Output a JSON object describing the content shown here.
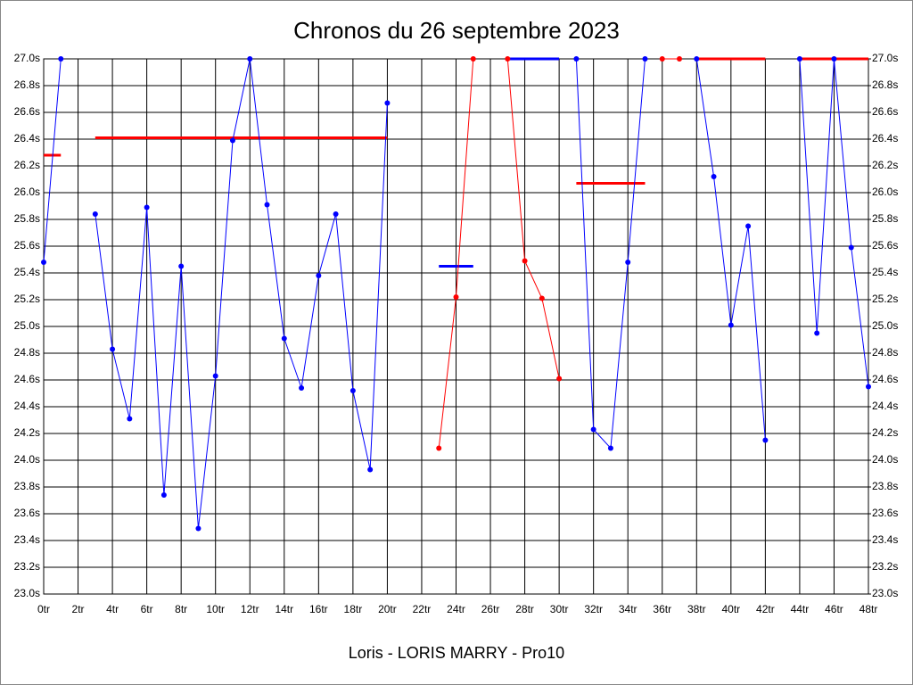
{
  "chart_data": {
    "type": "line",
    "title": "Chronos du 26 septembre 2023",
    "x_label": "Loris - LORIS MARRY - Pro10",
    "x": [
      0,
      1,
      2,
      3,
      4,
      5,
      6,
      7,
      8,
      9,
      10,
      11,
      12,
      13,
      14,
      15,
      16,
      17,
      18,
      19,
      20,
      21,
      22,
      23,
      24,
      25,
      26,
      27,
      28,
      29,
      30,
      31,
      32,
      33,
      34,
      35,
      36,
      37,
      38,
      39,
      40,
      41,
      42,
      43,
      44,
      45,
      46,
      47,
      48
    ],
    "series": [
      {
        "color": "#0000ff",
        "values": [
          25.48,
          27.0,
          null,
          25.84,
          24.83,
          24.31,
          25.89,
          23.74,
          25.45,
          23.49,
          24.63,
          26.39,
          27.0,
          25.91,
          24.91,
          24.54,
          25.38,
          25.84,
          24.52,
          23.93,
          26.67,
          null,
          null,
          null,
          null,
          null,
          null,
          null,
          null,
          null,
          null,
          27.0,
          24.23,
          24.09,
          25.48,
          27.0,
          null,
          null,
          27.0,
          26.12,
          25.01,
          25.75,
          24.15,
          null,
          27.0,
          24.95,
          27.0,
          25.59,
          24.55
        ]
      },
      {
        "color": "#ff0000",
        "values": [
          null,
          null,
          null,
          null,
          null,
          null,
          null,
          null,
          null,
          null,
          null,
          null,
          null,
          null,
          null,
          null,
          null,
          null,
          null,
          null,
          null,
          null,
          null,
          24.09,
          25.22,
          27.0,
          null,
          27.0,
          25.49,
          25.21,
          24.61,
          null,
          null,
          null,
          null,
          null,
          27.0,
          27.0,
          null,
          null,
          null,
          null,
          null,
          null,
          null,
          null,
          null,
          null,
          null
        ]
      }
    ],
    "stint_averages": [
      {
        "start": 0,
        "end": 1,
        "value": 26.28,
        "color": "#ff0000"
      },
      {
        "start": 3,
        "end": 20,
        "value": 26.41,
        "color": "#ff0000"
      },
      {
        "start": 23,
        "end": 25,
        "value": 25.45,
        "color": "#0000ff"
      },
      {
        "start": 27,
        "end": 30,
        "value": 27.0,
        "color": "#0000ff"
      },
      {
        "start": 31,
        "end": 35,
        "value": 26.07,
        "color": "#ff0000"
      },
      {
        "start": 38,
        "end": 42,
        "value": 27.0,
        "color": "#ff0000"
      },
      {
        "start": 44,
        "end": 48,
        "value": 27.0,
        "color": "#ff0000"
      }
    ],
    "xlim": [
      0,
      48
    ],
    "xticks": [
      {
        "value": 0,
        "label": "0tr"
      },
      {
        "value": 2,
        "label": "2tr"
      },
      {
        "value": 4,
        "label": "4tr"
      },
      {
        "value": 6,
        "label": "6tr"
      },
      {
        "value": 8,
        "label": "8tr"
      },
      {
        "value": 10,
        "label": "10tr"
      },
      {
        "value": 12,
        "label": "12tr"
      },
      {
        "value": 14,
        "label": "14tr"
      },
      {
        "value": 16,
        "label": "16tr"
      },
      {
        "value": 18,
        "label": "18tr"
      },
      {
        "value": 20,
        "label": "20tr"
      },
      {
        "value": 22,
        "label": "22tr"
      },
      {
        "value": 24,
        "label": "24tr"
      },
      {
        "value": 26,
        "label": "26tr"
      },
      {
        "value": 28,
        "label": "28tr"
      },
      {
        "value": 30,
        "label": "30tr"
      },
      {
        "value": 32,
        "label": "32tr"
      },
      {
        "value": 34,
        "label": "34tr"
      },
      {
        "value": 36,
        "label": "36tr"
      },
      {
        "value": 38,
        "label": "38tr"
      },
      {
        "value": 40,
        "label": "40tr"
      },
      {
        "value": 42,
        "label": "42tr"
      },
      {
        "value": 44,
        "label": "44tr"
      },
      {
        "value": 46,
        "label": "46tr"
      },
      {
        "value": 48,
        "label": "48tr"
      }
    ],
    "ylim": [
      23.0,
      27.0
    ],
    "yticks": [
      {
        "value": 23.0,
        "label": "23.0s"
      },
      {
        "value": 23.2,
        "label": "23.2s"
      },
      {
        "value": 23.4,
        "label": "23.4s"
      },
      {
        "value": 23.6,
        "label": "23.6s"
      },
      {
        "value": 23.8,
        "label": "23.8s"
      },
      {
        "value": 24.0,
        "label": "24.0s"
      },
      {
        "value": 24.2,
        "label": "24.2s"
      },
      {
        "value": 24.4,
        "label": "24.4s"
      },
      {
        "value": 24.6,
        "label": "24.6s"
      },
      {
        "value": 24.8,
        "label": "24.8s"
      },
      {
        "value": 25.0,
        "label": "25.0s"
      },
      {
        "value": 25.2,
        "label": "25.2s"
      },
      {
        "value": 25.4,
        "label": "25.4s"
      },
      {
        "value": 25.6,
        "label": "25.6s"
      },
      {
        "value": 25.8,
        "label": "25.8s"
      },
      {
        "value": 26.0,
        "label": "26.0s"
      },
      {
        "value": 26.2,
        "label": "26.2s"
      },
      {
        "value": 26.4,
        "label": "26.4s"
      },
      {
        "value": 26.6,
        "label": "26.6s"
      },
      {
        "value": 26.8,
        "label": "26.8s"
      },
      {
        "value": 27.0,
        "label": "27.0s"
      }
    ],
    "y2lim": [
      23.0,
      27.0
    ],
    "y2ticks": [
      {
        "value": 23.0,
        "label": "23.0s"
      },
      {
        "value": 23.2,
        "label": "23.2s"
      },
      {
        "value": 23.4,
        "label": "23.4s"
      },
      {
        "value": 23.6,
        "label": "23.6s"
      },
      {
        "value": 23.8,
        "label": "23.8s"
      },
      {
        "value": 24.0,
        "label": "24.0s"
      },
      {
        "value": 24.2,
        "label": "24.2s"
      },
      {
        "value": 24.4,
        "label": "24.4s"
      },
      {
        "value": 24.6,
        "label": "24.6s"
      },
      {
        "value": 24.8,
        "label": "24.8s"
      },
      {
        "value": 25.0,
        "label": "25.0s"
      },
      {
        "value": 25.2,
        "label": "25.2s"
      },
      {
        "value": 25.4,
        "label": "25.4s"
      },
      {
        "value": 25.6,
        "label": "25.6s"
      },
      {
        "value": 25.8,
        "label": "25.8s"
      },
      {
        "value": 26.0,
        "label": "26.0s"
      },
      {
        "value": 26.2,
        "label": "26.2s"
      },
      {
        "value": 26.4,
        "label": "26.4s"
      },
      {
        "value": 26.6,
        "label": "26.6s"
      },
      {
        "value": 26.8,
        "label": "26.8s"
      },
      {
        "value": 27.0,
        "label": "27.0s"
      }
    ],
    "grid": true
  }
}
